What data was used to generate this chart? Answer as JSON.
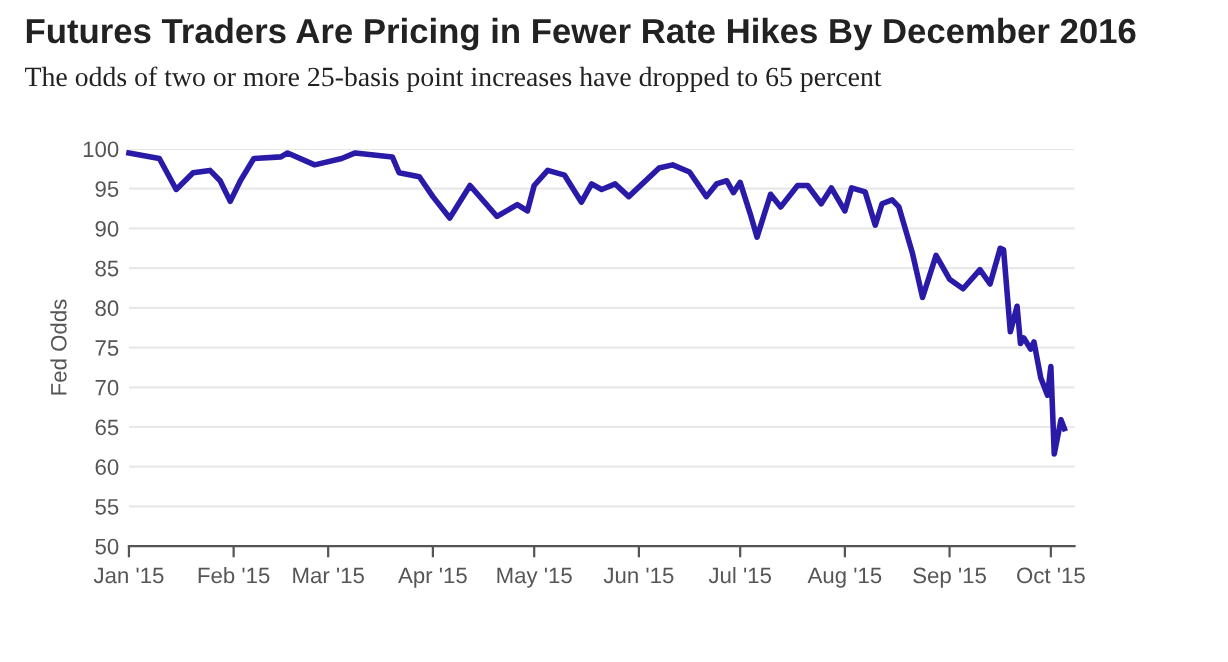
{
  "chart_data": {
    "type": "line",
    "title": "Futures Traders Are Pricing in Fewer Rate Hikes By December 2016",
    "subtitle": "The odds of two or more 25-basis point increases have dropped to 65 percent",
    "ylabel": "Fed Odds",
    "x": [
      "2015-01-01",
      "2015-01-10",
      "2015-01-15",
      "2015-01-20",
      "2015-01-25",
      "2015-01-28",
      "2015-01-31",
      "2015-02-03",
      "2015-02-07",
      "2015-02-15",
      "2015-02-17",
      "2015-02-25",
      "2015-03-05",
      "2015-03-09",
      "2015-03-20",
      "2015-03-22",
      "2015-03-28",
      "2015-04-01",
      "2015-04-06",
      "2015-04-12",
      "2015-04-20",
      "2015-04-26",
      "2015-04-29",
      "2015-05-01",
      "2015-05-05",
      "2015-05-10",
      "2015-05-15",
      "2015-05-18",
      "2015-05-21",
      "2015-05-25",
      "2015-05-29",
      "2015-06-07",
      "2015-06-11",
      "2015-06-16",
      "2015-06-21",
      "2015-06-24",
      "2015-06-27",
      "2015-06-29",
      "2015-07-01",
      "2015-07-04",
      "2015-07-06",
      "2015-07-10",
      "2015-07-13",
      "2015-07-18",
      "2015-07-21",
      "2015-07-25",
      "2015-07-28",
      "2015-08-01",
      "2015-08-03",
      "2015-08-07",
      "2015-08-10",
      "2015-08-12",
      "2015-08-15",
      "2015-08-17",
      "2015-08-21",
      "2015-08-24",
      "2015-08-28",
      "2015-09-01",
      "2015-09-05",
      "2015-09-10",
      "2015-09-13",
      "2015-09-16",
      "2015-09-17",
      "2015-09-19",
      "2015-09-21",
      "2015-09-22",
      "2015-09-23",
      "2015-09-25",
      "2015-09-26",
      "2015-09-28",
      "2015-09-30",
      "2015-10-01",
      "2015-10-02",
      "2015-10-04",
      "2015-10-05"
    ],
    "series": [
      {
        "color": "#2a1aa8",
        "values": [
          99.5,
          98.8,
          94.9,
          97,
          97.3,
          96,
          93.4,
          96,
          98.8,
          99,
          99.5,
          98,
          98.8,
          99.5,
          99,
          97,
          96.5,
          94,
          91.3,
          95.4,
          91.5,
          93,
          92.2,
          95.4,
          97.3,
          96.7,
          93.3,
          95.6,
          94.9,
          95.6,
          94,
          97.6,
          98,
          97.1,
          94,
          95.6,
          96,
          94.5,
          95.8,
          91.8,
          88.9,
          94.3,
          92.7,
          95.4,
          95.4,
          93.1,
          95.1,
          92.2,
          95.1,
          94.6,
          90.4,
          93.1,
          93.6,
          92.7,
          86.9,
          81.3,
          86.6,
          83.6,
          82.4,
          84.8,
          83,
          87.5,
          87.3,
          77,
          80.2,
          75.5,
          76.2,
          74.8,
          75.7,
          71.2,
          69,
          72.6,
          61.6,
          65.9,
          64.8
        ]
      }
    ],
    "xlim": [
      "2015-01-01",
      "2015-10-08"
    ],
    "xticks": [
      {
        "value": "2015-01-01",
        "label": "Jan '15"
      },
      {
        "value": "2015-02-01",
        "label": "Feb '15"
      },
      {
        "value": "2015-03-01",
        "label": "Mar '15"
      },
      {
        "value": "2015-04-01",
        "label": "Apr '15"
      },
      {
        "value": "2015-05-01",
        "label": "May '15"
      },
      {
        "value": "2015-06-01",
        "label": "Jun '15"
      },
      {
        "value": "2015-07-01",
        "label": "Jul '15"
      },
      {
        "value": "2015-08-01",
        "label": "Aug '15"
      },
      {
        "value": "2015-09-01",
        "label": "Sep '15"
      },
      {
        "value": "2015-10-01",
        "label": "Oct '15"
      }
    ],
    "ylim": [
      50,
      100
    ],
    "yticks": [
      50,
      55,
      60,
      65,
      70,
      75,
      80,
      85,
      90,
      95,
      100
    ],
    "grid": "y",
    "marker": "none",
    "line_style": "solid"
  }
}
